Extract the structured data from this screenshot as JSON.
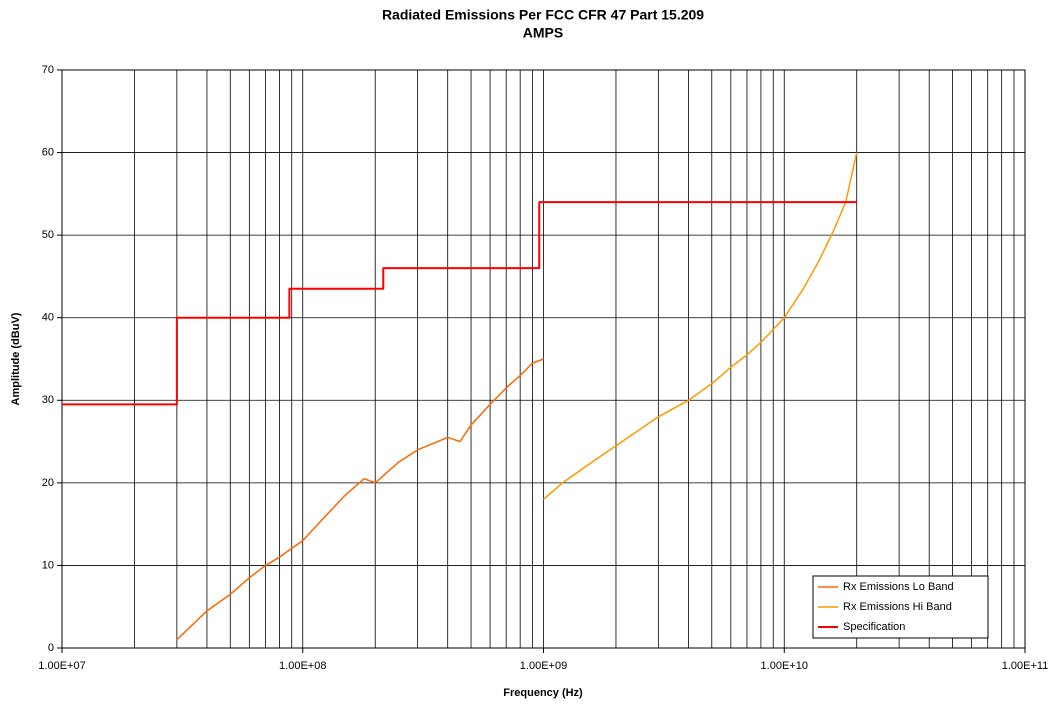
{
  "chart_data": {
    "type": "line",
    "title": "Radiated Emissions Per FCC CFR 47 Part 15.209",
    "subtitle": "AMPS",
    "x_label": "Frequency (Hz)",
    "y_label": "Amplitude (dBuV)",
    "xscale": "log",
    "xlim": [
      10000000,
      100000000000
    ],
    "xticks": [
      {
        "value": 10000000,
        "label": "1.00E+07"
      },
      {
        "value": 100000000,
        "label": "1.00E+08"
      },
      {
        "value": 1000000000,
        "label": "1.00E+09"
      },
      {
        "value": 10000000000,
        "label": "1.00E+10"
      },
      {
        "value": 100000000000,
        "label": "1.00E+11"
      }
    ],
    "xminorticks": [
      20000000,
      30000000,
      40000000,
      50000000,
      60000000,
      70000000,
      80000000,
      90000000,
      200000000,
      300000000,
      400000000,
      500000000,
      600000000,
      700000000,
      800000000,
      900000000,
      2000000000,
      3000000000,
      4000000000,
      5000000000,
      6000000000,
      7000000000,
      8000000000,
      9000000000,
      20000000000,
      30000000000,
      40000000000,
      50000000000,
      60000000000,
      70000000000,
      80000000000,
      90000000000
    ],
    "ylim": [
      0,
      70
    ],
    "yticks": [
      0,
      10,
      20,
      30,
      40,
      50,
      60,
      70
    ],
    "grid": true,
    "legend": "lower right",
    "series": [
      {
        "name": "Rx Emissions Lo Band",
        "color": "#ff6600",
        "width": 1.5,
        "x": [
          30000000,
          40000000,
          50000000,
          60000000,
          70000000,
          80000000,
          100000000,
          120000000,
          150000000,
          180000000,
          200000000,
          250000000,
          300000000,
          400000000,
          450000000,
          500000000,
          600000000,
          700000000,
          800000000,
          900000000,
          1000000000
        ],
        "values": [
          1,
          4.5,
          6.5,
          8.5,
          10,
          11,
          13,
          15.5,
          18.5,
          20.5,
          20,
          22.5,
          24,
          25.5,
          25,
          27,
          29.5,
          31.5,
          33,
          34.5,
          35
        ]
      },
      {
        "name": "Rx Emissions Hi Band",
        "color": "#ff9900",
        "width": 1.5,
        "x": [
          1000000000,
          1200000000,
          1500000000,
          2000000000,
          3000000000,
          4000000000,
          5000000000,
          6000000000,
          7000000000,
          8000000000,
          10000000000,
          12000000000,
          14000000000,
          16000000000,
          18000000000,
          20000000000
        ],
        "values": [
          18,
          20,
          22,
          24.5,
          28,
          30,
          32,
          34,
          35.5,
          37,
          40,
          43.5,
          47,
          50.5,
          54,
          60
        ]
      },
      {
        "name": "Specification",
        "color": "#ff0000",
        "width": 2,
        "x": [
          10000000,
          30000000,
          30000000,
          88000000,
          88000000,
          216000000,
          216000000,
          960000000,
          960000000,
          20000000000
        ],
        "values": [
          29.5,
          29.5,
          40,
          40,
          43.5,
          43.5,
          46,
          46,
          54,
          54
        ]
      }
    ]
  }
}
